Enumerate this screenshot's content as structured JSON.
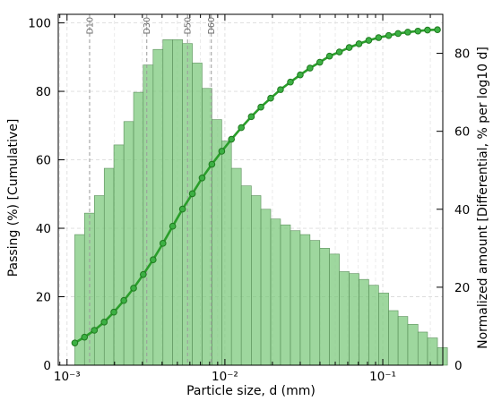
{
  "chart_data": {
    "type": "bar",
    "title": "",
    "xlabel": "Particle size, d (mm)",
    "ylabel": "Passing (%)  [Cumulative]",
    "y2label": "Normalized amount [Differential, % per log10 d]",
    "xscale": "log",
    "xlim": [
      0.00088,
      0.24
    ],
    "ylim": [
      0,
      102.5
    ],
    "y2lim": [
      0,
      90
    ],
    "grid": true,
    "x_ticks": [
      {
        "value": 0.001,
        "label": "10⁻³"
      },
      {
        "value": 0.01,
        "label": "10⁻²"
      },
      {
        "value": 0.1,
        "label": "10⁻¹"
      }
    ],
    "y_ticks": [
      0,
      20,
      40,
      60,
      80,
      100
    ],
    "y2_ticks": [
      0,
      20,
      40,
      60,
      80
    ],
    "reference_lines": [
      {
        "label": "D10",
        "x": 0.00139
      },
      {
        "label": "D30",
        "x": 0.0032
      },
      {
        "label": "D50",
        "x": 0.0058
      },
      {
        "label": "D60",
        "x": 0.0082
      }
    ],
    "series": [
      {
        "kind": "bar",
        "axis": "right",
        "color": "#7ec97e",
        "bin_edges": [
          0.00112,
          0.00129,
          0.00149,
          0.00172,
          0.00198,
          0.00229,
          0.00264,
          0.00304,
          0.00351,
          0.00405,
          0.00467,
          0.00539,
          0.00622,
          0.00717,
          0.00827,
          0.00955,
          0.011,
          0.0127,
          0.0147,
          0.0169,
          0.0195,
          0.0225,
          0.026,
          0.03,
          0.0346,
          0.0399,
          0.046,
          0.0531,
          0.0613,
          0.0707,
          0.0815,
          0.0941,
          0.109,
          0.125,
          0.144,
          0.167,
          0.192,
          0.222
        ],
        "values": [
          33.5,
          39,
          43.5,
          50.5,
          56.5,
          62.5,
          70,
          77,
          81,
          83.5,
          83.5,
          82.5,
          77.5,
          71,
          63,
          57.5,
          50.5,
          46,
          43.5,
          40,
          37.5,
          36,
          34.5,
          33.5,
          32,
          30,
          28.5,
          24,
          23.5,
          22,
          20.5,
          18.5,
          14,
          12.5,
          10.5,
          8.5,
          7,
          4.5
        ]
      },
      {
        "kind": "line",
        "axis": "left",
        "color": "#2a9e2a",
        "marker_color": "#1f7a1f",
        "x": [
          0.00112,
          0.00129,
          0.00149,
          0.00172,
          0.00198,
          0.00229,
          0.00264,
          0.00304,
          0.00351,
          0.00405,
          0.00467,
          0.00539,
          0.00622,
          0.00717,
          0.00827,
          0.00955,
          0.011,
          0.0127,
          0.0147,
          0.0169,
          0.0195,
          0.0225,
          0.026,
          0.03,
          0.0346,
          0.0399,
          0.046,
          0.0531,
          0.0613,
          0.0707,
          0.0815,
          0.0941,
          0.109,
          0.125,
          0.144,
          0.167,
          0.192,
          0.222
        ],
        "y": [
          6.5,
          8.2,
          10.2,
          12.6,
          15.5,
          18.9,
          22.5,
          26.5,
          30.8,
          35.6,
          40.6,
          45.6,
          50.1,
          54.7,
          58.7,
          62.5,
          66.0,
          69.4,
          72.6,
          75.4,
          78.0,
          80.5,
          82.7,
          84.8,
          86.8,
          88.5,
          90.3,
          91.5,
          92.8,
          93.9,
          94.9,
          95.7,
          96.3,
          96.9,
          97.3,
          97.6,
          97.9,
          98.0
        ]
      }
    ]
  }
}
